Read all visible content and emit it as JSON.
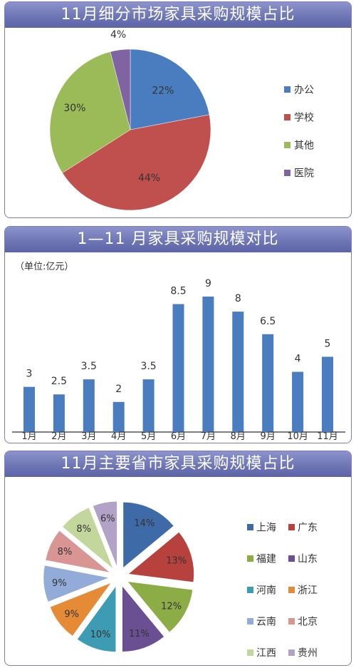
{
  "chart_data": [
    {
      "type": "pie",
      "title": "11月细分市场家具采购规模占比",
      "categories": [
        "办公",
        "学校",
        "其他",
        "医院"
      ],
      "values": [
        22,
        44,
        30,
        4
      ],
      "labels": [
        "22%",
        "44%",
        "30%",
        "4%"
      ],
      "colors": [
        "#4a7dbf",
        "#c0504d",
        "#9bbb59",
        "#8064a2"
      ],
      "legend": "right"
    },
    {
      "type": "bar",
      "title": "1—11 月家具采购规模对比",
      "unit_label": "（单位:亿元）",
      "categories": [
        "1月",
        "2月",
        "3月",
        "4月",
        "5月",
        "6月",
        "7月",
        "8月",
        "9月",
        "10月",
        "11月"
      ],
      "values": [
        3,
        2.5,
        3.5,
        2,
        3.5,
        8.5,
        9,
        8,
        6.5,
        4,
        5
      ],
      "value_labels": [
        "3",
        "2.5",
        "3.5",
        "2",
        "3.5",
        "8.5",
        "9",
        "8",
        "6.5",
        "4",
        "5"
      ],
      "ylim": [
        0,
        10
      ],
      "color": "#4a7dbf",
      "grid": false
    },
    {
      "type": "pie",
      "title": "11月主要省市家具采购规模占比",
      "categories": [
        "上海",
        "广东",
        "福建",
        "山东",
        "河南",
        "浙江",
        "云南",
        "北京",
        "江西",
        "贵州"
      ],
      "values": [
        14,
        13,
        12,
        11,
        10,
        9,
        9,
        8,
        8,
        6
      ],
      "labels": [
        "14%",
        "13%",
        "12%",
        "11%",
        "10%",
        "9%",
        "9%",
        "8%",
        "8%",
        "6%"
      ],
      "colors": [
        "#3f6aa8",
        "#b7413c",
        "#8cad46",
        "#6a4f93",
        "#3d9bb3",
        "#e58a35",
        "#93abd8",
        "#d99594",
        "#c3d69b",
        "#b3a2c7"
      ],
      "legend": "right",
      "exploded": true
    }
  ]
}
